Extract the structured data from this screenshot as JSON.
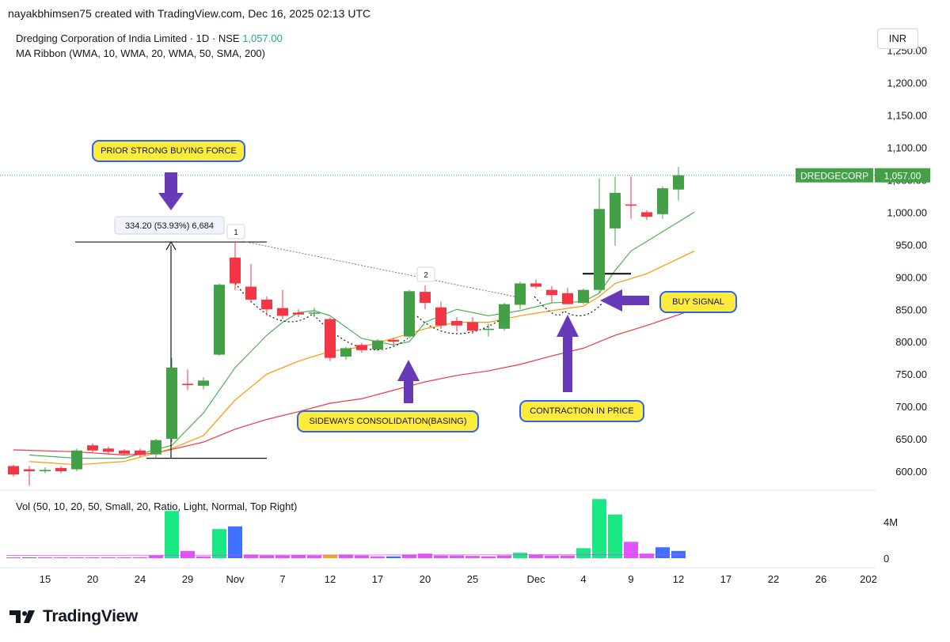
{
  "header": {
    "credit": "nayakbhimsen75 created with TradingView.com, Dec 16, 2025 02:13 UTC"
  },
  "legend": {
    "symbol_name": "Dredging Corporation of India Limited",
    "interval": "1D",
    "exchange": "NSE",
    "last_price": "1,057.00",
    "indicator": "MA Ribbon (WMA, 10, WMA, 20, WMA, 50, SMA, 200)",
    "volume_indicator": "Vol (50, 10, 20, 50, Small, 20, Ratio, Light, Normal, Top Right)"
  },
  "currency_button": "INR",
  "price_tag": {
    "ticker": "DREDGECORP",
    "price": "1,057.00"
  },
  "annotations": {
    "prior_force": "PRIOR STRONG BUYING FORCE",
    "measure": "334.20 (53.93%) 6,684",
    "marker_1": "1",
    "marker_2": "2",
    "sideways": "SIDEWAYS CONSOLIDATION(BASING)",
    "contraction": "CONTRACTION IN PRICE",
    "buy_signal": "BUY SIGNAL"
  },
  "footer": {
    "brand": "TradingView"
  },
  "colors": {
    "up": "#26a69a",
    "up_candle": "#43a047",
    "down": "#f23645",
    "ma_fast": "#4caf50",
    "ma_mid": "#ff9800",
    "ma_slow": "#f23645",
    "vol_green": "#00e676",
    "vol_pink": "#e040fb",
    "vol_blue": "#2962ff",
    "callout_fill": "#ffeb3b",
    "callout_border": "#2962ff",
    "arrow": "#673ab7"
  },
  "chart_data": {
    "type": "candlestick",
    "y_ticks": [
      "600.00",
      "650.00",
      "700.00",
      "750.00",
      "800.00",
      "850.00",
      "900.00",
      "950.00",
      "1,000.00",
      "1,050.00",
      "1,100.00",
      "1,150.00",
      "1,200.00",
      "1,250.00"
    ],
    "y_range": [
      580,
      1270
    ],
    "x_ticks": [
      {
        "label": "15",
        "i": 1
      },
      {
        "label": "20",
        "i": 4
      },
      {
        "label": "24",
        "i": 7
      },
      {
        "label": "29",
        "i": 10
      },
      {
        "label": "Nov",
        "i": 13
      },
      {
        "label": "7",
        "i": 16
      },
      {
        "label": "12",
        "i": 19
      },
      {
        "label": "17",
        "i": 22
      },
      {
        "label": "20",
        "i": 25
      },
      {
        "label": "25",
        "i": 28
      },
      {
        "label": "Dec",
        "i": 32
      },
      {
        "label": "4",
        "i": 35
      },
      {
        "label": "9",
        "i": 38
      },
      {
        "label": "12",
        "i": 41
      },
      {
        "label": "17",
        "i": 44
      },
      {
        "label": "22",
        "i": 47
      },
      {
        "label": "26",
        "i": 50
      },
      {
        "label": "202",
        "i": 53
      }
    ],
    "candles": [
      {
        "o": 608,
        "h": 610,
        "l": 592,
        "c": 595
      },
      {
        "o": 603,
        "h": 608,
        "l": 578,
        "c": 600
      },
      {
        "o": 600,
        "h": 606,
        "l": 597,
        "c": 602
      },
      {
        "o": 605,
        "h": 608,
        "l": 597,
        "c": 600
      },
      {
        "o": 603,
        "h": 635,
        "l": 600,
        "c": 632
      },
      {
        "o": 640,
        "h": 643,
        "l": 628,
        "c": 632
      },
      {
        "o": 635,
        "h": 638,
        "l": 627,
        "c": 630
      },
      {
        "o": 632,
        "h": 634,
        "l": 625,
        "c": 627
      },
      {
        "o": 632,
        "h": 635,
        "l": 622,
        "c": 625
      },
      {
        "o": 626,
        "h": 650,
        "l": 620,
        "c": 648
      },
      {
        "o": 650,
        "h": 775,
        "l": 645,
        "c": 760
      },
      {
        "o": 735,
        "h": 757,
        "l": 725,
        "c": 733
      },
      {
        "o": 732,
        "h": 745,
        "l": 726,
        "c": 740
      },
      {
        "o": 780,
        "h": 890,
        "l": 778,
        "c": 888
      },
      {
        "o": 930,
        "h": 955,
        "l": 880,
        "c": 890
      },
      {
        "o": 885,
        "h": 920,
        "l": 860,
        "c": 865
      },
      {
        "o": 865,
        "h": 870,
        "l": 840,
        "c": 850
      },
      {
        "o": 852,
        "h": 880,
        "l": 835,
        "c": 840
      },
      {
        "o": 845,
        "h": 850,
        "l": 838,
        "c": 842
      },
      {
        "o": 845,
        "h": 853,
        "l": 838,
        "c": 845
      },
      {
        "o": 835,
        "h": 838,
        "l": 770,
        "c": 775
      },
      {
        "o": 777,
        "h": 792,
        "l": 772,
        "c": 790
      },
      {
        "o": 795,
        "h": 798,
        "l": 783,
        "c": 787
      },
      {
        "o": 788,
        "h": 804,
        "l": 785,
        "c": 802
      },
      {
        "o": 803,
        "h": 806,
        "l": 795,
        "c": 800
      },
      {
        "o": 808,
        "h": 880,
        "l": 805,
        "c": 878
      },
      {
        "o": 877,
        "h": 887,
        "l": 850,
        "c": 860
      },
      {
        "o": 853,
        "h": 862,
        "l": 820,
        "c": 825
      },
      {
        "o": 832,
        "h": 838,
        "l": 816,
        "c": 825
      },
      {
        "o": 830,
        "h": 838,
        "l": 812,
        "c": 817
      },
      {
        "o": 820,
        "h": 828,
        "l": 808,
        "c": 820
      },
      {
        "o": 820,
        "h": 860,
        "l": 817,
        "c": 858
      },
      {
        "o": 857,
        "h": 893,
        "l": 850,
        "c": 890
      },
      {
        "o": 890,
        "h": 896,
        "l": 882,
        "c": 885
      },
      {
        "o": 880,
        "h": 886,
        "l": 860,
        "c": 872
      },
      {
        "o": 875,
        "h": 883,
        "l": 858,
        "c": 858
      },
      {
        "o": 860,
        "h": 882,
        "l": 858,
        "c": 880
      },
      {
        "o": 880,
        "h": 1052,
        "l": 875,
        "c": 1005
      },
      {
        "o": 975,
        "h": 1055,
        "l": 948,
        "c": 1030
      },
      {
        "o": 1012,
        "h": 1055,
        "l": 990,
        "c": 1010
      },
      {
        "o": 1000,
        "h": 1003,
        "l": 988,
        "c": 993
      },
      {
        "o": 997,
        "h": 1040,
        "l": 990,
        "c": 1037
      },
      {
        "o": 1035,
        "h": 1070,
        "l": 1018,
        "c": 1057
      }
    ],
    "ma": {
      "fast": [
        [
          1,
          625
        ],
        [
          4,
          620
        ],
        [
          7,
          620
        ],
        [
          10,
          640
        ],
        [
          12,
          690
        ],
        [
          14,
          760
        ],
        [
          16,
          810
        ],
        [
          17,
          830
        ],
        [
          18,
          845
        ],
        [
          19,
          848
        ],
        [
          20,
          840
        ],
        [
          22,
          805
        ],
        [
          24,
          795
        ],
        [
          25,
          800
        ],
        [
          26,
          830
        ],
        [
          28,
          850
        ],
        [
          30,
          840
        ],
        [
          32,
          848
        ],
        [
          34,
          860
        ],
        [
          36,
          862
        ],
        [
          37,
          875
        ],
        [
          38,
          910
        ],
        [
          39,
          940
        ],
        [
          41,
          970
        ],
        [
          43,
          1000
        ]
      ],
      "mid": [
        [
          1,
          615
        ],
        [
          4,
          610
        ],
        [
          7,
          615
        ],
        [
          10,
          635
        ],
        [
          12,
          655
        ],
        [
          14,
          710
        ],
        [
          16,
          750
        ],
        [
          18,
          770
        ],
        [
          20,
          785
        ],
        [
          22,
          792
        ],
        [
          24,
          805
        ],
        [
          26,
          820
        ],
        [
          28,
          830
        ],
        [
          30,
          830
        ],
        [
          32,
          840
        ],
        [
          34,
          848
        ],
        [
          36,
          855
        ],
        [
          37,
          870
        ],
        [
          38,
          890
        ],
        [
          40,
          905
        ],
        [
          43,
          940
        ]
      ],
      "slow": [
        [
          0,
          633
        ],
        [
          4,
          630
        ],
        [
          7,
          625
        ],
        [
          9,
          628
        ],
        [
          12,
          645
        ],
        [
          14,
          665
        ],
        [
          16,
          680
        ],
        [
          18,
          692
        ],
        [
          20,
          705
        ],
        [
          22,
          712
        ],
        [
          24,
          725
        ],
        [
          26,
          738
        ],
        [
          28,
          748
        ],
        [
          30,
          755
        ],
        [
          32,
          765
        ],
        [
          34,
          778
        ],
        [
          36,
          790
        ],
        [
          38,
          810
        ],
        [
          40,
          825
        ],
        [
          43,
          850
        ]
      ]
    },
    "volume": {
      "max_label": "4M",
      "zero_label": "0",
      "ticks": [
        0,
        4
      ],
      "unit": "M",
      "bars": [
        0.05,
        0.05,
        0.05,
        0.05,
        0.08,
        0.08,
        0.05,
        0.05,
        0.1,
        0.3,
        5.2,
        0.8,
        0.2,
        3.2,
        3.5,
        0.4,
        0.3,
        0.3,
        0.35,
        0.3,
        0.35,
        0.4,
        0.3,
        0.2,
        0.2,
        0.4,
        0.5,
        0.3,
        0.3,
        0.25,
        0.2,
        0.3,
        0.6,
        0.4,
        0.3,
        0.3,
        1.1,
        6.5,
        4.8,
        1.8,
        0.5,
        1.2,
        0.8
      ],
      "colors": [
        "pink",
        "blue",
        "pink",
        "pink",
        "pink",
        "pink",
        "pink",
        "pink",
        "pink",
        "pink",
        "green",
        "pink",
        "pink",
        "green",
        "blue",
        "pink",
        "pink",
        "pink",
        "pink",
        "pink",
        "orange",
        "pink",
        "pink",
        "pink",
        "blue",
        "pink",
        "pink",
        "pink",
        "pink",
        "pink",
        "pink",
        "pink",
        "green",
        "pink",
        "pink",
        "pink",
        "green",
        "green",
        "green",
        "pink",
        "pink",
        "blue",
        "blue"
      ]
    },
    "last_price_level": 1057,
    "measure": {
      "from": 620,
      "to": 954,
      "i_from": 0,
      "i_to": 20.5
    },
    "lines": {
      "breakout_level": 905,
      "trend": {
        "from_i": 14,
        "from_v": 955,
        "to_i": 32,
        "to_v": 868
      }
    }
  }
}
